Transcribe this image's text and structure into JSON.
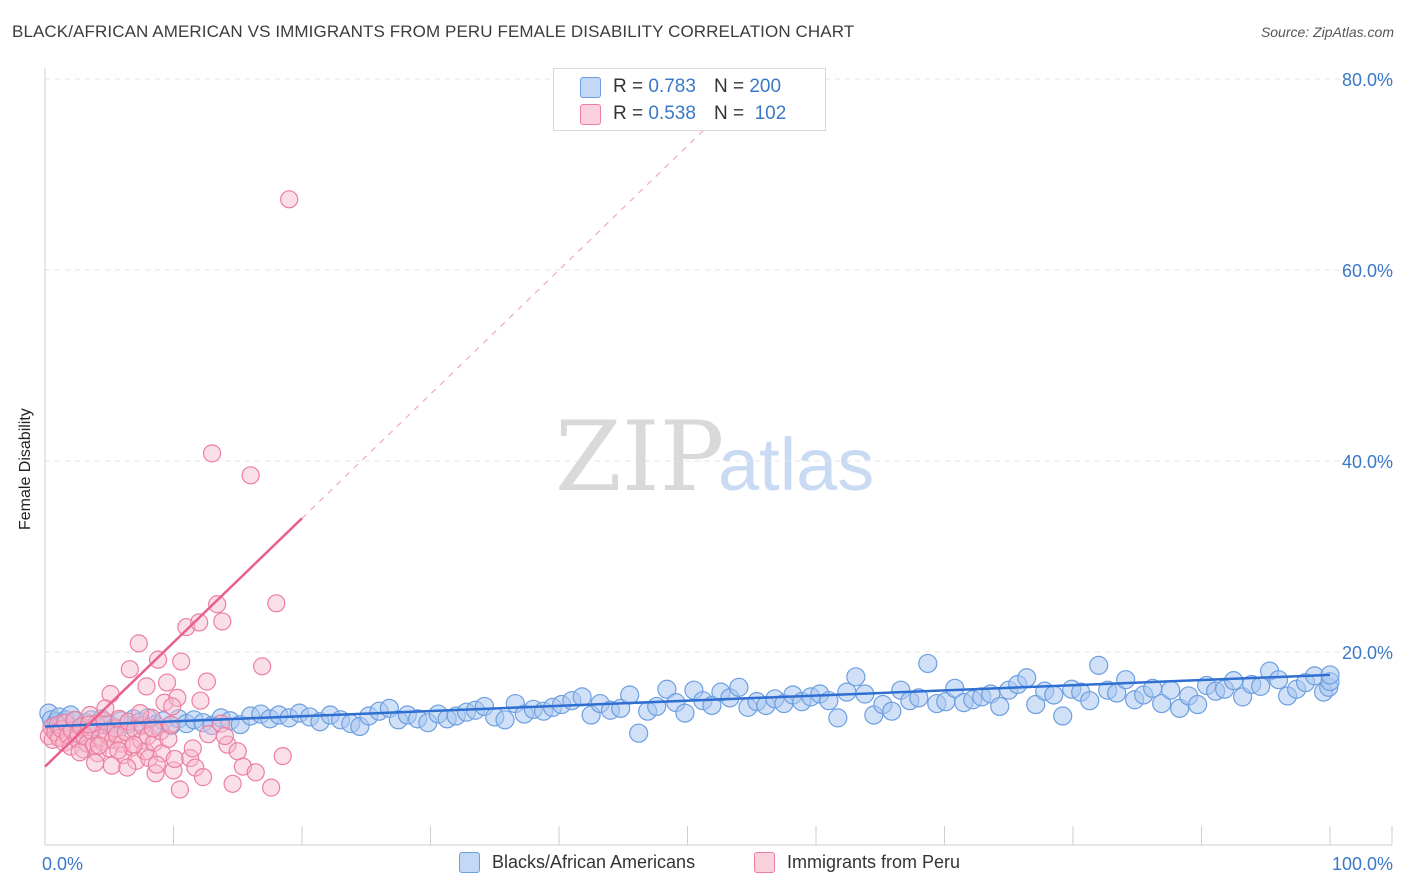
{
  "title": "BLACK/AFRICAN AMERICAN VS IMMIGRANTS FROM PERU FEMALE DISABILITY CORRELATION CHART",
  "source": "Source: ZipAtlas.com",
  "watermark": {
    "zip": "ZIP",
    "atlas": "atlas"
  },
  "legend_top": [
    {
      "r_label": "R =",
      "r_value": "0.783",
      "n_label": "N =",
      "n_value": "200",
      "color": "#a9c7f0"
    },
    {
      "r_label": "R =",
      "r_value": "0.538",
      "n_label": "N =",
      "n_value": "102",
      "color": "#f7b8cb"
    }
  ],
  "bottom_legend": [
    {
      "label": "Blacks/African Americans",
      "color": "#a9c7f0"
    },
    {
      "label": "Immigrants from Peru",
      "color": "#f7b8cb"
    }
  ],
  "colors": {
    "blue_fill": "#a9c7f0",
    "blue_stroke": "#6d9fe0",
    "blue_line": "#2f6fd1",
    "pink_fill": "#f7b8cb",
    "pink_stroke": "#ec7fa0",
    "pink_line": "#e8608d",
    "tick_label": "#3a78c9",
    "grid": "#e3e3e3"
  },
  "chart_data": {
    "type": "scatter",
    "title": "BLACK/AFRICAN AMERICAN VS IMMIGRANTS FROM PERU FEMALE DISABILITY CORRELATION CHART",
    "xlabel": "",
    "ylabel": "Female Disability",
    "xlim": [
      0,
      100
    ],
    "ylim": [
      0,
      80
    ],
    "x_tick_labels": [
      "0.0%",
      "100.0%"
    ],
    "y_ticks": [
      20,
      40,
      60,
      80
    ],
    "y_tick_labels": [
      "20.0%",
      "40.0%",
      "60.0%",
      "80.0%"
    ],
    "series": [
      {
        "name": "Blacks/African Americans",
        "R": 0.783,
        "N": 200,
        "trend": {
          "x": [
            0,
            100
          ],
          "y": [
            12.2,
            17.6
          ]
        },
        "points": [
          [
            0.3,
            13.6
          ],
          [
            0.5,
            12.9
          ],
          [
            0.7,
            12.3
          ],
          [
            0.9,
            12.7
          ],
          [
            1.1,
            13.2
          ],
          [
            1.3,
            12.5
          ],
          [
            1.6,
            12.9
          ],
          [
            2.0,
            13.4
          ],
          [
            2.4,
            12.8
          ],
          [
            2.8,
            12.0
          ],
          [
            3.2,
            12.6
          ],
          [
            3.6,
            12.9
          ],
          [
            4.0,
            12.2
          ],
          [
            4.4,
            13.0
          ],
          [
            4.9,
            12.5
          ],
          [
            5.4,
            12.1
          ],
          [
            5.9,
            12.8
          ],
          [
            6.4,
            12.4
          ],
          [
            6.9,
            13.0
          ],
          [
            7.4,
            12.7
          ],
          [
            8.0,
            13.1
          ],
          [
            8.6,
            12.4
          ],
          [
            9.2,
            12.8
          ],
          [
            9.8,
            12.3
          ],
          [
            10.4,
            13.0
          ],
          [
            11.0,
            12.5
          ],
          [
            11.6,
            12.9
          ],
          [
            12.3,
            12.6
          ],
          [
            13.0,
            12.3
          ],
          [
            13.7,
            13.1
          ],
          [
            14.4,
            12.8
          ],
          [
            15.2,
            12.4
          ],
          [
            16.0,
            13.3
          ],
          [
            16.8,
            13.5
          ],
          [
            17.5,
            13.0
          ],
          [
            18.2,
            13.4
          ],
          [
            19.0,
            13.1
          ],
          [
            19.8,
            13.6
          ],
          [
            20.6,
            13.2
          ],
          [
            21.4,
            12.7
          ],
          [
            22.2,
            13.4
          ],
          [
            23.0,
            12.9
          ],
          [
            23.8,
            12.5
          ],
          [
            24.5,
            12.2
          ],
          [
            25.2,
            13.3
          ],
          [
            26.0,
            13.8
          ],
          [
            26.8,
            14.1
          ],
          [
            27.5,
            12.9
          ],
          [
            28.2,
            13.4
          ],
          [
            29.0,
            13.0
          ],
          [
            29.8,
            12.6
          ],
          [
            30.6,
            13.5
          ],
          [
            31.3,
            13.0
          ],
          [
            32.0,
            13.3
          ],
          [
            32.8,
            13.7
          ],
          [
            33.5,
            13.9
          ],
          [
            34.2,
            14.3
          ],
          [
            35.0,
            13.2
          ],
          [
            35.8,
            12.9
          ],
          [
            36.6,
            14.6
          ],
          [
            37.3,
            13.5
          ],
          [
            38.0,
            14.0
          ],
          [
            38.8,
            13.8
          ],
          [
            39.5,
            14.2
          ],
          [
            40.2,
            14.5
          ],
          [
            41.0,
            14.9
          ],
          [
            41.8,
            15.3
          ],
          [
            42.5,
            13.4
          ],
          [
            43.2,
            14.6
          ],
          [
            44.0,
            13.9
          ],
          [
            44.8,
            14.1
          ],
          [
            45.5,
            15.5
          ],
          [
            46.2,
            11.5
          ],
          [
            46.9,
            13.8
          ],
          [
            47.6,
            14.3
          ],
          [
            48.4,
            16.1
          ],
          [
            49.1,
            14.7
          ],
          [
            49.8,
            13.6
          ],
          [
            50.5,
            16.0
          ],
          [
            51.2,
            14.9
          ],
          [
            51.9,
            14.4
          ],
          [
            52.6,
            15.8
          ],
          [
            53.3,
            15.2
          ],
          [
            54.0,
            16.3
          ],
          [
            54.7,
            14.2
          ],
          [
            55.4,
            14.8
          ],
          [
            56.1,
            14.4
          ],
          [
            56.8,
            15.1
          ],
          [
            57.5,
            14.6
          ],
          [
            58.2,
            15.5
          ],
          [
            58.9,
            14.8
          ],
          [
            59.6,
            15.3
          ],
          [
            60.3,
            15.6
          ],
          [
            61.0,
            14.9
          ],
          [
            61.7,
            13.1
          ],
          [
            62.4,
            15.8
          ],
          [
            63.1,
            17.4
          ],
          [
            63.8,
            15.6
          ],
          [
            64.5,
            13.4
          ],
          [
            65.2,
            14.5
          ],
          [
            65.9,
            13.8
          ],
          [
            66.6,
            16.0
          ],
          [
            67.3,
            14.9
          ],
          [
            68.0,
            15.2
          ],
          [
            68.7,
            18.8
          ],
          [
            69.4,
            14.6
          ],
          [
            70.1,
            14.8
          ],
          [
            70.8,
            16.2
          ],
          [
            71.5,
            14.7
          ],
          [
            72.2,
            15.0
          ],
          [
            72.9,
            15.3
          ],
          [
            73.6,
            15.6
          ],
          [
            74.3,
            14.3
          ],
          [
            75.0,
            16.0
          ],
          [
            75.7,
            16.6
          ],
          [
            76.4,
            17.3
          ],
          [
            77.1,
            14.5
          ],
          [
            77.8,
            15.9
          ],
          [
            78.5,
            15.5
          ],
          [
            79.2,
            13.3
          ],
          [
            79.9,
            16.1
          ],
          [
            80.6,
            15.8
          ],
          [
            81.3,
            14.9
          ],
          [
            82.0,
            18.6
          ],
          [
            82.7,
            16.0
          ],
          [
            83.4,
            15.7
          ],
          [
            84.1,
            17.1
          ],
          [
            84.8,
            15.0
          ],
          [
            85.5,
            15.5
          ],
          [
            86.2,
            16.2
          ],
          [
            86.9,
            14.6
          ],
          [
            87.6,
            16.0
          ],
          [
            88.3,
            14.1
          ],
          [
            89.0,
            15.4
          ],
          [
            89.7,
            14.5
          ],
          [
            90.4,
            16.5
          ],
          [
            91.1,
            15.9
          ],
          [
            91.8,
            16.1
          ],
          [
            92.5,
            17.0
          ],
          [
            93.2,
            15.3
          ],
          [
            93.9,
            16.6
          ],
          [
            94.6,
            16.4
          ],
          [
            95.3,
            18.0
          ],
          [
            96.0,
            17.1
          ],
          [
            96.7,
            15.4
          ],
          [
            97.4,
            16.1
          ],
          [
            98.1,
            16.8
          ],
          [
            98.8,
            17.5
          ],
          [
            99.5,
            15.8
          ],
          [
            99.9,
            16.3
          ],
          [
            100.0,
            16.9
          ],
          [
            100.0,
            17.6
          ]
        ]
      },
      {
        "name": "Immigrants from Peru",
        "R": 0.538,
        "N": 102,
        "trend": {
          "x": [
            0,
            20
          ],
          "y": [
            8.0,
            34.0
          ]
        },
        "points": [
          [
            0.3,
            11.2
          ],
          [
            0.5,
            12.1
          ],
          [
            0.6,
            10.8
          ],
          [
            0.8,
            11.6
          ],
          [
            1.0,
            12.4
          ],
          [
            1.1,
            11.0
          ],
          [
            1.3,
            11.9
          ],
          [
            1.5,
            10.5
          ],
          [
            1.6,
            12.6
          ],
          [
            1.8,
            11.3
          ],
          [
            2.0,
            10.1
          ],
          [
            2.1,
            11.8
          ],
          [
            2.3,
            12.9
          ],
          [
            2.5,
            10.9
          ],
          [
            2.6,
            11.4
          ],
          [
            2.8,
            12.2
          ],
          [
            3.0,
            9.8
          ],
          [
            3.1,
            11.1
          ],
          [
            3.3,
            10.4
          ],
          [
            3.5,
            13.4
          ],
          [
            3.6,
            11.7
          ],
          [
            3.8,
            10.2
          ],
          [
            4.0,
            12.5
          ],
          [
            4.1,
            9.4
          ],
          [
            4.3,
            11.0
          ],
          [
            4.5,
            10.6
          ],
          [
            4.6,
            12.8
          ],
          [
            4.8,
            11.5
          ],
          [
            5.0,
            9.9
          ],
          [
            5.1,
            15.6
          ],
          [
            5.3,
            10.8
          ],
          [
            5.5,
            12.0
          ],
          [
            5.6,
            11.3
          ],
          [
            5.8,
            13.0
          ],
          [
            6.0,
            10.4
          ],
          [
            6.1,
            9.2
          ],
          [
            6.3,
            11.6
          ],
          [
            6.5,
            12.7
          ],
          [
            6.6,
            18.2
          ],
          [
            6.8,
            10.0
          ],
          [
            7.0,
            11.9
          ],
          [
            7.1,
            8.6
          ],
          [
            7.3,
            20.9
          ],
          [
            7.5,
            10.7
          ],
          [
            7.6,
            12.3
          ],
          [
            7.8,
            9.6
          ],
          [
            8.0,
            11.2
          ],
          [
            8.1,
            8.9
          ],
          [
            8.3,
            13.1
          ],
          [
            8.5,
            10.5
          ],
          [
            8.6,
            7.3
          ],
          [
            8.8,
            19.2
          ],
          [
            9.0,
            11.7
          ],
          [
            9.1,
            9.4
          ],
          [
            9.3,
            14.7
          ],
          [
            9.5,
            16.8
          ],
          [
            9.6,
            10.9
          ],
          [
            9.8,
            12.4
          ],
          [
            10.0,
            7.6
          ],
          [
            10.1,
            8.8
          ],
          [
            10.3,
            15.2
          ],
          [
            10.5,
            5.6
          ],
          [
            11.0,
            22.6
          ],
          [
            11.3,
            8.9
          ],
          [
            11.7,
            7.9
          ],
          [
            12.0,
            23.1
          ],
          [
            12.3,
            6.9
          ],
          [
            12.7,
            11.4
          ],
          [
            13.0,
            40.8
          ],
          [
            13.4,
            25.0
          ],
          [
            13.8,
            23.2
          ],
          [
            14.2,
            10.3
          ],
          [
            14.6,
            6.2
          ],
          [
            15.0,
            9.6
          ],
          [
            15.4,
            8.0
          ],
          [
            16.0,
            38.5
          ],
          [
            16.4,
            7.4
          ],
          [
            16.9,
            18.5
          ],
          [
            17.6,
            5.8
          ],
          [
            18.0,
            25.1
          ],
          [
            18.5,
            9.1
          ],
          [
            19.0,
            67.4
          ],
          [
            4.7,
            14.1
          ],
          [
            5.2,
            8.1
          ],
          [
            6.9,
            10.3
          ],
          [
            7.9,
            16.4
          ],
          [
            8.4,
            12.0
          ],
          [
            9.9,
            14.3
          ],
          [
            10.6,
            19.0
          ],
          [
            11.5,
            9.9
          ],
          [
            12.1,
            14.9
          ],
          [
            13.7,
            12.5
          ],
          [
            2.7,
            9.5
          ],
          [
            3.9,
            8.4
          ],
          [
            5.7,
            9.7
          ],
          [
            6.4,
            7.9
          ],
          [
            7.4,
            13.6
          ],
          [
            8.7,
            8.2
          ],
          [
            12.6,
            16.9
          ],
          [
            14.0,
            11.2
          ],
          [
            3.4,
            12.4
          ],
          [
            4.2,
            10.2
          ]
        ]
      }
    ]
  }
}
